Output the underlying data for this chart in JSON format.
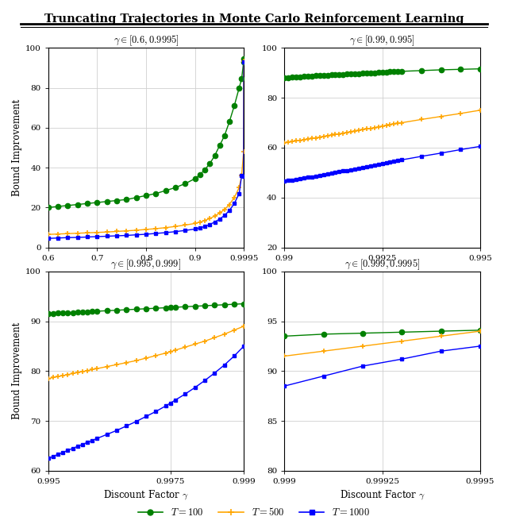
{
  "title": "Truncating Trajectories in Monte Carlo Reinforcement Learning",
  "colors": [
    "#008000",
    "#FFA500",
    "#0000FF"
  ],
  "markers": [
    "o",
    "+",
    "s"
  ],
  "subplots": [
    {
      "title": "$\\gamma \\in [0.6, 0.9995]$",
      "xlim": [
        0.6,
        0.9995
      ],
      "ylim": [
        0,
        100
      ],
      "xticks": [
        0.6,
        0.7,
        0.8,
        0.9,
        0.9995
      ],
      "xtick_labels": [
        "0.6",
        "0.7",
        "0.8",
        "0.9",
        "0.9995"
      ],
      "yticks": [
        0,
        20,
        40,
        60,
        80,
        100
      ],
      "xlabel": "",
      "ylabel": "Bound Improvement",
      "gamma_points": [
        0.6,
        0.62,
        0.64,
        0.66,
        0.68,
        0.7,
        0.72,
        0.74,
        0.76,
        0.78,
        0.8,
        0.82,
        0.84,
        0.86,
        0.88,
        0.9,
        0.91,
        0.92,
        0.93,
        0.94,
        0.95,
        0.96,
        0.97,
        0.98,
        0.99,
        0.995,
        0.999,
        0.9995
      ],
      "T100": [
        20.0,
        20.5,
        21.0,
        21.5,
        22.0,
        22.5,
        23.0,
        23.5,
        24.0,
        25.0,
        26.0,
        27.0,
        28.5,
        30.0,
        32.0,
        34.5,
        36.5,
        39.0,
        42.0,
        46.0,
        51.0,
        56.0,
        63.0,
        71.0,
        80.0,
        84.5,
        93.0,
        94.5
      ],
      "T500": [
        6.5,
        6.7,
        6.9,
        7.1,
        7.3,
        7.5,
        7.7,
        8.0,
        8.3,
        8.6,
        9.0,
        9.4,
        9.9,
        10.5,
        11.2,
        12.0,
        12.7,
        13.5,
        14.5,
        15.7,
        17.2,
        19.0,
        21.5,
        25.0,
        30.0,
        36.0,
        48.0,
        93.5
      ],
      "T1000": [
        4.5,
        4.7,
        4.9,
        5.0,
        5.2,
        5.4,
        5.6,
        5.8,
        6.0,
        6.3,
        6.6,
        7.0,
        7.4,
        7.9,
        8.5,
        9.2,
        9.8,
        10.5,
        11.5,
        12.7,
        14.2,
        16.0,
        18.5,
        22.0,
        27.0,
        36.0,
        35.5,
        93.0
      ]
    },
    {
      "title": "$\\gamma \\in [0.99, 0.995]$",
      "xlim": [
        0.99,
        0.995
      ],
      "ylim": [
        20,
        100
      ],
      "xticks": [
        0.99,
        0.9925,
        0.995
      ],
      "xtick_labels": [
        "0.99",
        "0.9925",
        "0.995"
      ],
      "yticks": [
        20,
        40,
        60,
        80,
        100
      ],
      "xlabel": "",
      "ylabel": "",
      "gamma_points": [
        0.99,
        0.9901,
        0.9902,
        0.9903,
        0.9904,
        0.9905,
        0.9906,
        0.9907,
        0.9908,
        0.9909,
        0.991,
        0.9911,
        0.9912,
        0.9913,
        0.9914,
        0.9915,
        0.9916,
        0.9917,
        0.9918,
        0.9919,
        0.992,
        0.9921,
        0.9922,
        0.9923,
        0.9924,
        0.9925,
        0.9926,
        0.9927,
        0.9928,
        0.9929,
        0.993,
        0.9935,
        0.994,
        0.9945,
        0.995
      ],
      "T100": [
        88.0,
        88.1,
        88.2,
        88.3,
        88.4,
        88.5,
        88.6,
        88.7,
        88.8,
        88.9,
        89.0,
        89.1,
        89.2,
        89.3,
        89.3,
        89.4,
        89.5,
        89.5,
        89.6,
        89.7,
        89.8,
        89.9,
        90.0,
        90.0,
        90.1,
        90.2,
        90.3,
        90.4,
        90.5,
        90.5,
        90.6,
        90.9,
        91.2,
        91.4,
        91.6
      ],
      "T500": [
        62.0,
        62.2,
        62.4,
        62.7,
        62.9,
        63.2,
        63.4,
        63.7,
        63.9,
        64.2,
        64.5,
        64.7,
        65.0,
        65.3,
        65.5,
        65.8,
        66.1,
        66.3,
        66.6,
        66.9,
        67.2,
        67.5,
        67.7,
        68.0,
        68.3,
        68.6,
        68.9,
        69.2,
        69.5,
        69.7,
        70.0,
        71.3,
        72.5,
        73.7,
        75.0
      ],
      "T1000": [
        46.5,
        46.8,
        47.0,
        47.3,
        47.5,
        47.8,
        48.1,
        48.3,
        48.6,
        48.9,
        49.2,
        49.5,
        49.8,
        50.0,
        50.3,
        50.6,
        50.9,
        51.2,
        51.5,
        51.8,
        52.1,
        52.4,
        52.7,
        53.0,
        53.3,
        53.6,
        53.9,
        54.2,
        54.5,
        54.8,
        55.1,
        56.5,
        57.8,
        59.2,
        60.5
      ]
    },
    {
      "title": "$\\gamma \\in [0.995, 0.999]$",
      "xlim": [
        0.995,
        0.999
      ],
      "ylim": [
        60,
        100
      ],
      "xticks": [
        0.995,
        0.9975,
        0.999
      ],
      "xtick_labels": [
        "0.995",
        "0.9975",
        "0.999"
      ],
      "yticks": [
        60,
        70,
        80,
        90,
        100
      ],
      "xlabel": "Discount Factor $\\gamma$",
      "ylabel": "Bound Improvement",
      "gamma_points": [
        0.995,
        0.9951,
        0.9952,
        0.9953,
        0.9954,
        0.9955,
        0.9956,
        0.9957,
        0.9958,
        0.9959,
        0.996,
        0.9962,
        0.9964,
        0.9966,
        0.9968,
        0.997,
        0.9972,
        0.9974,
        0.9975,
        0.9976,
        0.9978,
        0.998,
        0.9982,
        0.9984,
        0.9986,
        0.9988,
        0.999
      ],
      "T100": [
        91.5,
        91.55,
        91.6,
        91.65,
        91.7,
        91.75,
        91.8,
        91.85,
        91.9,
        91.95,
        92.0,
        92.1,
        92.2,
        92.3,
        92.4,
        92.5,
        92.6,
        92.7,
        92.75,
        92.8,
        92.9,
        93.0,
        93.1,
        93.2,
        93.3,
        93.4,
        93.5
      ],
      "T500": [
        78.5,
        78.7,
        78.9,
        79.1,
        79.3,
        79.5,
        79.7,
        79.9,
        80.1,
        80.3,
        80.5,
        80.9,
        81.3,
        81.7,
        82.1,
        82.6,
        83.1,
        83.6,
        83.9,
        84.2,
        84.8,
        85.4,
        86.0,
        86.7,
        87.4,
        88.2,
        89.0
      ],
      "T1000": [
        62.5,
        62.9,
        63.3,
        63.7,
        64.1,
        64.5,
        64.9,
        65.3,
        65.7,
        66.1,
        66.5,
        67.3,
        68.1,
        69.0,
        69.9,
        70.9,
        71.9,
        73.0,
        73.6,
        74.2,
        75.4,
        76.7,
        78.1,
        79.6,
        81.2,
        83.0,
        85.0
      ]
    },
    {
      "title": "$\\gamma \\in [0.999, 0.9995]$",
      "xlim": [
        0.999,
        0.9995
      ],
      "ylim": [
        80,
        100
      ],
      "xticks": [
        0.999,
        0.99925,
        0.9995
      ],
      "xtick_labels": [
        "0.999",
        "0.99925",
        "0.9995"
      ],
      "yticks": [
        80,
        85,
        90,
        95,
        100
      ],
      "xlabel": "Discount Factor $\\gamma$",
      "ylabel": "",
      "gamma_points": [
        0.999,
        0.9991,
        0.9992,
        0.9993,
        0.9994,
        0.9995
      ],
      "T100": [
        93.5,
        93.7,
        93.8,
        93.9,
        94.0,
        94.1
      ],
      "T500": [
        91.5,
        92.0,
        92.5,
        93.0,
        93.5,
        94.0
      ],
      "T1000": [
        88.5,
        89.5,
        90.5,
        91.2,
        92.0,
        92.5
      ]
    }
  ],
  "legend_labels": [
    "$T = 100$",
    "$T = 500$",
    "$T = 1000$"
  ]
}
